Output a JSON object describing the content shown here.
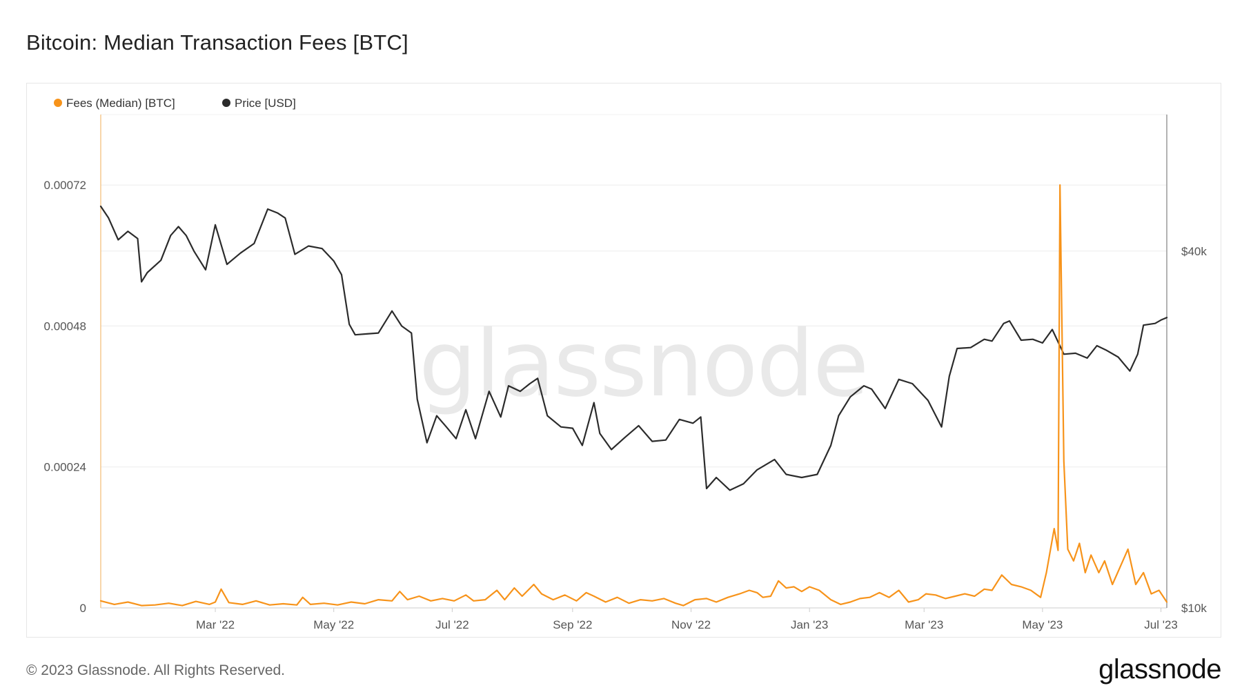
{
  "page": {
    "title": "Bitcoin: Median Transaction Fees [BTC]",
    "copyright": "© 2023 Glassnode. All Rights Reserved.",
    "logo_text": "glassnode",
    "watermark": "glassnode"
  },
  "colors": {
    "fees": "#f7931a",
    "price": "#2b2b2b",
    "grid": "#ececec",
    "axis": "#cccccc"
  },
  "chart_data": {
    "type": "line",
    "title": "Bitcoin: Median Transaction Fees [BTC]",
    "legend": {
      "placement": "top-left",
      "entries": [
        {
          "name": "Fees (Median) [BTC]",
          "color": "#f7931a"
        },
        {
          "name": "Price [USD]",
          "color": "#2b2b2b"
        }
      ]
    },
    "grid": true,
    "x_range": [
      "2022-01-01",
      "2023-07-04"
    ],
    "x_ticks": [
      {
        "date": "2022-03-01",
        "label": "Mar '22"
      },
      {
        "date": "2022-05-01",
        "label": "May '22"
      },
      {
        "date": "2022-07-01",
        "label": "Jul '22"
      },
      {
        "date": "2022-09-01",
        "label": "Sep '22"
      },
      {
        "date": "2022-11-01",
        "label": "Nov '22"
      },
      {
        "date": "2023-01-01",
        "label": "Jan '23"
      },
      {
        "date": "2023-03-01",
        "label": "Mar '23"
      },
      {
        "date": "2023-05-01",
        "label": "May '23"
      },
      {
        "date": "2023-07-01",
        "label": "Jul '23"
      }
    ],
    "y_left": {
      "range": [
        0,
        0.00084
      ],
      "ticks": [
        {
          "value": 0,
          "label": "0"
        },
        {
          "value": 0.00024,
          "label": "0.00024"
        },
        {
          "value": 0.00048,
          "label": "0.00048"
        },
        {
          "value": 0.00072,
          "label": "0.00072"
        }
      ]
    },
    "y_right": {
      "scale": "log",
      "range": [
        10000,
        68000
      ],
      "ticks": [
        {
          "value": 10000,
          "label": "$10k"
        },
        {
          "value": 40000,
          "label": "$40k"
        }
      ]
    },
    "series": [
      {
        "name": "Fees (Median) [BTC]",
        "axis": "left",
        "points": [
          [
            "2022-01-01",
            1.2e-05
          ],
          [
            "2022-01-08",
            6e-06
          ],
          [
            "2022-01-15",
            1e-05
          ],
          [
            "2022-01-22",
            4e-06
          ],
          [
            "2022-01-29",
            5e-06
          ],
          [
            "2022-02-05",
            8e-06
          ],
          [
            "2022-02-12",
            4e-06
          ],
          [
            "2022-02-19",
            1.1e-05
          ],
          [
            "2022-02-26",
            6e-06
          ],
          [
            "2022-03-01",
            1e-05
          ],
          [
            "2022-03-04",
            3.2e-05
          ],
          [
            "2022-03-08",
            9e-06
          ],
          [
            "2022-03-15",
            6e-06
          ],
          [
            "2022-03-22",
            1.2e-05
          ],
          [
            "2022-03-29",
            5e-06
          ],
          [
            "2022-04-05",
            7e-06
          ],
          [
            "2022-04-12",
            5e-06
          ],
          [
            "2022-04-15",
            1.8e-05
          ],
          [
            "2022-04-19",
            6e-06
          ],
          [
            "2022-04-26",
            8e-06
          ],
          [
            "2022-05-03",
            5e-06
          ],
          [
            "2022-05-10",
            1e-05
          ],
          [
            "2022-05-17",
            7e-06
          ],
          [
            "2022-05-24",
            1.4e-05
          ],
          [
            "2022-05-31",
            1.2e-05
          ],
          [
            "2022-06-04",
            2.8e-05
          ],
          [
            "2022-06-08",
            1.4e-05
          ],
          [
            "2022-06-14",
            2e-05
          ],
          [
            "2022-06-20",
            1.2e-05
          ],
          [
            "2022-06-26",
            1.6e-05
          ],
          [
            "2022-07-02",
            1.2e-05
          ],
          [
            "2022-07-08",
            2.2e-05
          ],
          [
            "2022-07-12",
            1.2e-05
          ],
          [
            "2022-07-18",
            1.4e-05
          ],
          [
            "2022-07-24",
            3e-05
          ],
          [
            "2022-07-28",
            1.4e-05
          ],
          [
            "2022-08-02",
            3.4e-05
          ],
          [
            "2022-08-06",
            2e-05
          ],
          [
            "2022-08-12",
            4e-05
          ],
          [
            "2022-08-16",
            2.4e-05
          ],
          [
            "2022-08-22",
            1.4e-05
          ],
          [
            "2022-08-28",
            2.2e-05
          ],
          [
            "2022-09-03",
            1.2e-05
          ],
          [
            "2022-09-08",
            2.6e-05
          ],
          [
            "2022-09-12",
            2e-05
          ],
          [
            "2022-09-18",
            1e-05
          ],
          [
            "2022-09-24",
            1.8e-05
          ],
          [
            "2022-09-30",
            8e-06
          ],
          [
            "2022-10-06",
            1.4e-05
          ],
          [
            "2022-10-12",
            1.2e-05
          ],
          [
            "2022-10-18",
            1.6e-05
          ],
          [
            "2022-10-24",
            8e-06
          ],
          [
            "2022-10-28",
            4e-06
          ],
          [
            "2022-11-03",
            1.4e-05
          ],
          [
            "2022-11-09",
            1.6e-05
          ],
          [
            "2022-11-14",
            1e-05
          ],
          [
            "2022-11-20",
            1.8e-05
          ],
          [
            "2022-11-26",
            2.4e-05
          ],
          [
            "2022-12-01",
            3e-05
          ],
          [
            "2022-12-05",
            2.6e-05
          ],
          [
            "2022-12-08",
            1.8e-05
          ],
          [
            "2022-12-12",
            2e-05
          ],
          [
            "2022-12-16",
            4.6e-05
          ],
          [
            "2022-12-20",
            3.4e-05
          ],
          [
            "2022-12-24",
            3.6e-05
          ],
          [
            "2022-12-28",
            2.8e-05
          ],
          [
            "2023-01-01",
            3.6e-05
          ],
          [
            "2023-01-06",
            3e-05
          ],
          [
            "2023-01-12",
            1.4e-05
          ],
          [
            "2023-01-17",
            6e-06
          ],
          [
            "2023-01-22",
            1e-05
          ],
          [
            "2023-01-27",
            1.6e-05
          ],
          [
            "2023-02-01",
            1.8e-05
          ],
          [
            "2023-02-06",
            2.6e-05
          ],
          [
            "2023-02-11",
            1.8e-05
          ],
          [
            "2023-02-16",
            3e-05
          ],
          [
            "2023-02-21",
            1e-05
          ],
          [
            "2023-02-26",
            1.4e-05
          ],
          [
            "2023-03-02",
            2.4e-05
          ],
          [
            "2023-03-07",
            2.2e-05
          ],
          [
            "2023-03-12",
            1.6e-05
          ],
          [
            "2023-03-17",
            2e-05
          ],
          [
            "2023-03-22",
            2.4e-05
          ],
          [
            "2023-03-27",
            2e-05
          ],
          [
            "2023-04-01",
            3.2e-05
          ],
          [
            "2023-04-05",
            3e-05
          ],
          [
            "2023-04-10",
            5.6e-05
          ],
          [
            "2023-04-15",
            4e-05
          ],
          [
            "2023-04-20",
            3.6e-05
          ],
          [
            "2023-04-25",
            3e-05
          ],
          [
            "2023-04-30",
            1.8e-05
          ],
          [
            "2023-05-03",
            6e-05
          ],
          [
            "2023-05-07",
            0.000135
          ],
          [
            "2023-05-09",
            9.8e-05
          ],
          [
            "2023-05-10",
            0.00072
          ],
          [
            "2023-05-12",
            0.00025
          ],
          [
            "2023-05-14",
            0.0001
          ],
          [
            "2023-05-17",
            8e-05
          ],
          [
            "2023-05-20",
            0.00011
          ],
          [
            "2023-05-23",
            6e-05
          ],
          [
            "2023-05-26",
            9e-05
          ],
          [
            "2023-05-30",
            6e-05
          ],
          [
            "2023-06-02",
            8e-05
          ],
          [
            "2023-06-06",
            4e-05
          ],
          [
            "2023-06-10",
            7e-05
          ],
          [
            "2023-06-14",
            0.0001
          ],
          [
            "2023-06-18",
            4e-05
          ],
          [
            "2023-06-22",
            6e-05
          ],
          [
            "2023-06-26",
            2.4e-05
          ],
          [
            "2023-06-30",
            3e-05
          ],
          [
            "2023-07-02",
            2e-05
          ],
          [
            "2023-07-04",
            1e-05
          ]
        ]
      },
      {
        "name": "Price [USD]",
        "axis": "right",
        "points": [
          [
            "2022-01-01",
            47600
          ],
          [
            "2022-01-05",
            45500
          ],
          [
            "2022-01-10",
            41800
          ],
          [
            "2022-01-15",
            43200
          ],
          [
            "2022-01-20",
            42000
          ],
          [
            "2022-01-22",
            35500
          ],
          [
            "2022-01-25",
            36800
          ],
          [
            "2022-02-01",
            38600
          ],
          [
            "2022-02-06",
            42500
          ],
          [
            "2022-02-10",
            44000
          ],
          [
            "2022-02-14",
            42500
          ],
          [
            "2022-02-18",
            40000
          ],
          [
            "2022-02-24",
            37200
          ],
          [
            "2022-03-01",
            44300
          ],
          [
            "2022-03-07",
            38000
          ],
          [
            "2022-03-14",
            39700
          ],
          [
            "2022-03-21",
            41200
          ],
          [
            "2022-03-28",
            47100
          ],
          [
            "2022-04-02",
            46400
          ],
          [
            "2022-04-06",
            45500
          ],
          [
            "2022-04-11",
            39500
          ],
          [
            "2022-04-18",
            40800
          ],
          [
            "2022-04-25",
            40400
          ],
          [
            "2022-05-01",
            38500
          ],
          [
            "2022-05-05",
            36500
          ],
          [
            "2022-05-09",
            30100
          ],
          [
            "2022-05-12",
            28900
          ],
          [
            "2022-05-18",
            29000
          ],
          [
            "2022-05-24",
            29100
          ],
          [
            "2022-05-31",
            31700
          ],
          [
            "2022-06-05",
            29900
          ],
          [
            "2022-06-10",
            29100
          ],
          [
            "2022-06-13",
            22500
          ],
          [
            "2022-06-18",
            19000
          ],
          [
            "2022-06-23",
            21100
          ],
          [
            "2022-06-28",
            20200
          ],
          [
            "2022-07-03",
            19300
          ],
          [
            "2022-07-08",
            21600
          ],
          [
            "2022-07-13",
            19300
          ],
          [
            "2022-07-20",
            23200
          ],
          [
            "2022-07-26",
            21000
          ],
          [
            "2022-07-30",
            23700
          ],
          [
            "2022-08-05",
            23200
          ],
          [
            "2022-08-10",
            23900
          ],
          [
            "2022-08-14",
            24400
          ],
          [
            "2022-08-19",
            21100
          ],
          [
            "2022-08-26",
            20200
          ],
          [
            "2022-09-01",
            20100
          ],
          [
            "2022-09-06",
            18800
          ],
          [
            "2022-09-12",
            22200
          ],
          [
            "2022-09-15",
            19700
          ],
          [
            "2022-09-21",
            18500
          ],
          [
            "2022-09-28",
            19400
          ],
          [
            "2022-10-05",
            20300
          ],
          [
            "2022-10-12",
            19100
          ],
          [
            "2022-10-19",
            19200
          ],
          [
            "2022-10-26",
            20800
          ],
          [
            "2022-11-02",
            20500
          ],
          [
            "2022-11-06",
            21000
          ],
          [
            "2022-11-09",
            15900
          ],
          [
            "2022-11-14",
            16600
          ],
          [
            "2022-11-21",
            15800
          ],
          [
            "2022-11-28",
            16200
          ],
          [
            "2022-12-05",
            17100
          ],
          [
            "2022-12-14",
            17800
          ],
          [
            "2022-12-20",
            16800
          ],
          [
            "2022-12-28",
            16600
          ],
          [
            "2023-01-05",
            16800
          ],
          [
            "2023-01-12",
            18800
          ],
          [
            "2023-01-16",
            21100
          ],
          [
            "2023-01-22",
            22700
          ],
          [
            "2023-01-29",
            23700
          ],
          [
            "2023-02-02",
            23400
          ],
          [
            "2023-02-09",
            21700
          ],
          [
            "2023-02-16",
            24300
          ],
          [
            "2023-02-23",
            23900
          ],
          [
            "2023-03-03",
            22400
          ],
          [
            "2023-03-10",
            20200
          ],
          [
            "2023-03-14",
            24600
          ],
          [
            "2023-03-18",
            27400
          ],
          [
            "2023-03-25",
            27500
          ],
          [
            "2023-04-01",
            28400
          ],
          [
            "2023-04-05",
            28200
          ],
          [
            "2023-04-11",
            30200
          ],
          [
            "2023-04-14",
            30500
          ],
          [
            "2023-04-20",
            28300
          ],
          [
            "2023-04-26",
            28400
          ],
          [
            "2023-05-01",
            28000
          ],
          [
            "2023-05-06",
            29500
          ],
          [
            "2023-05-12",
            26800
          ],
          [
            "2023-05-18",
            26900
          ],
          [
            "2023-05-24",
            26400
          ],
          [
            "2023-05-29",
            27700
          ],
          [
            "2023-06-03",
            27200
          ],
          [
            "2023-06-09",
            26500
          ],
          [
            "2023-06-15",
            25100
          ],
          [
            "2023-06-19",
            26800
          ],
          [
            "2023-06-22",
            30000
          ],
          [
            "2023-06-28",
            30200
          ],
          [
            "2023-07-01",
            30600
          ],
          [
            "2023-07-04",
            30900
          ]
        ]
      }
    ]
  }
}
